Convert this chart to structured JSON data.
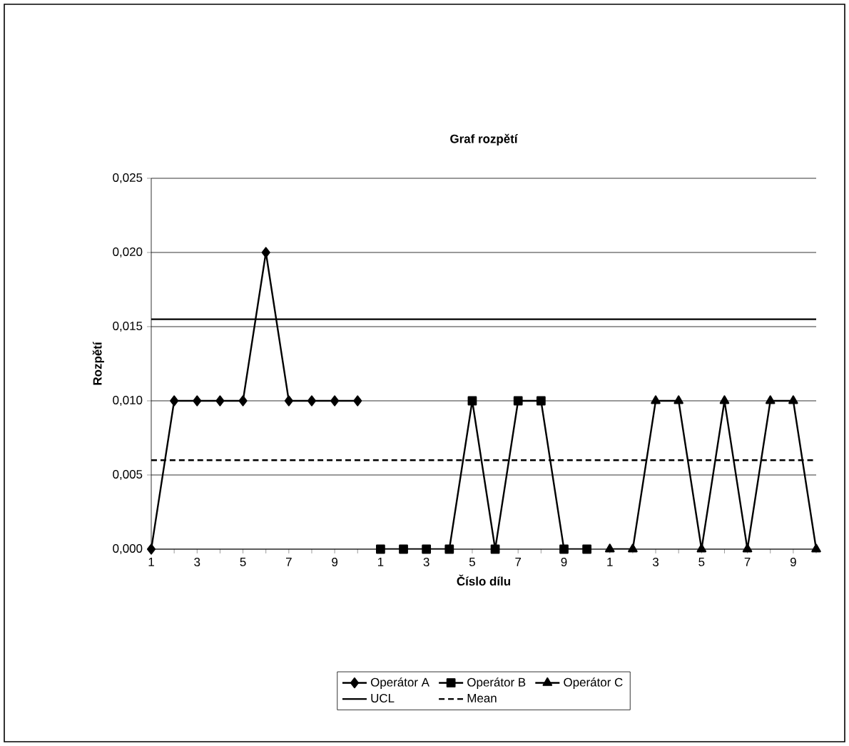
{
  "chart_data": {
    "type": "line",
    "title": "Graf rozpětí",
    "xlabel": "Číslo dílu",
    "ylabel": "Rozpětí",
    "categories": [
      "1",
      null,
      "3",
      null,
      "5",
      null,
      "7",
      null,
      "9",
      null,
      "1",
      null,
      "3",
      null,
      "5",
      null,
      "7",
      null,
      "9",
      null,
      "1",
      null,
      "3",
      null,
      "5",
      null,
      "7",
      null,
      "9",
      null
    ],
    "series": [
      {
        "name": "Operátor A",
        "color": "#000000",
        "marker": "diamond",
        "line_style": "solid",
        "values": [
          0,
          0.01,
          0.01,
          0.01,
          0.01,
          0.02,
          0.01,
          0.01,
          0.01,
          0.01,
          null,
          null,
          null,
          null,
          null,
          null,
          null,
          null,
          null,
          null,
          null,
          null,
          null,
          null,
          null,
          null,
          null,
          null,
          null,
          null
        ]
      },
      {
        "name": "Operátor B",
        "color": "#000000",
        "marker": "square",
        "line_style": "solid",
        "values": [
          null,
          null,
          null,
          null,
          null,
          null,
          null,
          null,
          null,
          null,
          0,
          0,
          0,
          0,
          0.01,
          0,
          0.01,
          0.01,
          0,
          0,
          null,
          null,
          null,
          null,
          null,
          null,
          null,
          null,
          null,
          null
        ]
      },
      {
        "name": "Operátor C",
        "color": "#000000",
        "marker": "triangle",
        "line_style": "solid",
        "values": [
          null,
          null,
          null,
          null,
          null,
          null,
          null,
          null,
          null,
          null,
          null,
          null,
          null,
          null,
          null,
          null,
          null,
          null,
          null,
          null,
          0,
          0,
          0.01,
          0.01,
          0,
          0.01,
          0,
          0.01,
          0.01,
          0
        ]
      },
      {
        "name": "UCL",
        "color": "#000000",
        "marker": "none",
        "line_style": "solid",
        "values": [
          0.0155,
          0.0155,
          0.0155,
          0.0155,
          0.0155,
          0.0155,
          0.0155,
          0.0155,
          0.0155,
          0.0155,
          0.0155,
          0.0155,
          0.0155,
          0.0155,
          0.0155,
          0.0155,
          0.0155,
          0.0155,
          0.0155,
          0.0155,
          0.0155,
          0.0155,
          0.0155,
          0.0155,
          0.0155,
          0.0155,
          0.0155,
          0.0155,
          0.0155,
          0.0155
        ]
      },
      {
        "name": "Mean",
        "color": "#000000",
        "marker": "none",
        "line_style": "dashed",
        "values": [
          0.006,
          0.006,
          0.006,
          0.006,
          0.006,
          0.006,
          0.006,
          0.006,
          0.006,
          0.006,
          0.006,
          0.006,
          0.006,
          0.006,
          0.006,
          0.006,
          0.006,
          0.006,
          0.006,
          0.006,
          0.006,
          0.006,
          0.006,
          0.006,
          0.006,
          0.006,
          0.006,
          0.006,
          0.006,
          0.006
        ]
      }
    ],
    "ylim": [
      0,
      0.025
    ],
    "yticks": [
      {
        "value": 0,
        "label": "0,000"
      },
      {
        "value": 0.005,
        "label": "0,005"
      },
      {
        "value": 0.01,
        "label": "0,010"
      },
      {
        "value": 0.015,
        "label": "0,015"
      },
      {
        "value": 0.02,
        "label": "0,020"
      },
      {
        "value": 0.025,
        "label": "0,025"
      }
    ],
    "grid": "y",
    "legend": "bottom"
  }
}
